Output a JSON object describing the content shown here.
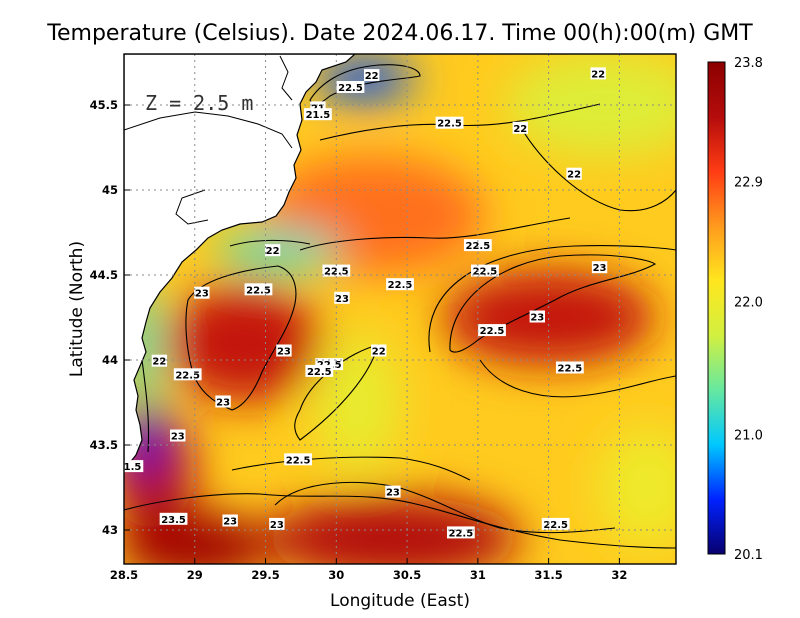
{
  "chart_data": {
    "type": "heatmap",
    "title": "Temperature (Celsius). Date 2024.06.17. Time 00(h):00(m)  GMT",
    "annotation": "Z = 2.5 m",
    "xlabel": "Longitude (East)",
    "ylabel": "Latitude (North)",
    "xlim": [
      28.5,
      32.4
    ],
    "ylim": [
      42.8,
      45.8
    ],
    "x_ticks": [
      "28.5",
      "29",
      "29.5",
      "30",
      "30.5",
      "31",
      "31.5",
      "32"
    ],
    "x_tick_values": [
      28.5,
      29,
      29.5,
      30,
      30.5,
      31,
      31.5,
      32
    ],
    "y_ticks": [
      "43",
      "43.5",
      "44",
      "44.5",
      "45",
      "45.5"
    ],
    "y_tick_values": [
      43,
      43.5,
      44,
      44.5,
      45,
      45.5
    ],
    "grid": true,
    "colorbar": {
      "min": 20.1,
      "max": 23.8,
      "labels": [
        "23.8",
        "22.9",
        "22.0",
        "21.0",
        "20.1"
      ],
      "label_values": [
        23.8,
        22.9,
        22.0,
        21.0,
        20.1
      ],
      "colors": [
        "#08006e",
        "#0022ff",
        "#00c8ff",
        "#66e8a0",
        "#d2f040",
        "#ffe61e",
        "#ff9a1e",
        "#ff3c14",
        "#b40c0c",
        "#8c0000"
      ]
    },
    "field": {
      "background_value": 22.3,
      "features": [
        {
          "lon": 29.35,
          "lat": 44.1,
          "value": 23.3,
          "rx": 0.55,
          "ry": 0.35
        },
        {
          "lon": 30.4,
          "lat": 42.95,
          "value": 23.4,
          "rx": 0.9,
          "ry": 0.25
        },
        {
          "lon": 29.0,
          "lat": 42.9,
          "value": 23.6,
          "rx": 0.55,
          "ry": 0.2
        },
        {
          "lon": 31.5,
          "lat": 44.25,
          "value": 23.3,
          "rx": 0.75,
          "ry": 0.28
        },
        {
          "lon": 28.7,
          "lat": 43.35,
          "value": 23.4,
          "rx": 0.3,
          "ry": 0.35
        },
        {
          "lon": 30.25,
          "lat": 44.85,
          "value": 22.75,
          "rx": 0.8,
          "ry": 0.35
        },
        {
          "lon": 30.15,
          "lat": 43.75,
          "value": 21.95,
          "rx": 0.3,
          "ry": 0.4
        },
        {
          "lon": 31.9,
          "lat": 45.5,
          "value": 21.85,
          "rx": 0.7,
          "ry": 0.3
        },
        {
          "lon": 32.2,
          "lat": 43.25,
          "value": 22.0,
          "rx": 0.35,
          "ry": 0.35
        },
        {
          "lon": 29.6,
          "lat": 44.65,
          "value": 21.2,
          "rx": 0.45,
          "ry": 0.12
        },
        {
          "lon": 30.2,
          "lat": 45.65,
          "value": 20.6,
          "rx": 0.35,
          "ry": 0.12
        },
        {
          "lon": 28.65,
          "lat": 43.55,
          "value": 20.4,
          "rx": 0.12,
          "ry": 0.22
        },
        {
          "lon": 28.62,
          "lat": 44.1,
          "value": 21.2,
          "rx": 0.12,
          "ry": 0.35
        }
      ]
    },
    "contour_labels": [
      {
        "text": "22",
        "lon": 30.25,
        "lat": 45.67
      },
      {
        "text": "22",
        "lon": 31.85,
        "lat": 45.68
      },
      {
        "text": "22.5",
        "lon": 30.1,
        "lat": 45.6
      },
      {
        "text": "21",
        "lon": 29.87,
        "lat": 45.48
      },
      {
        "text": "21.5",
        "lon": 29.87,
        "lat": 45.44
      },
      {
        "text": "22.5",
        "lon": 30.8,
        "lat": 45.39
      },
      {
        "text": "22",
        "lon": 31.3,
        "lat": 45.36
      },
      {
        "text": "22",
        "lon": 31.68,
        "lat": 45.09
      },
      {
        "text": "22",
        "lon": 29.55,
        "lat": 44.64
      },
      {
        "text": "22.5",
        "lon": 30.0,
        "lat": 44.52
      },
      {
        "text": "22.5",
        "lon": 31.0,
        "lat": 44.67
      },
      {
        "text": "22.5",
        "lon": 31.05,
        "lat": 44.52
      },
      {
        "text": "23",
        "lon": 31.86,
        "lat": 44.54
      },
      {
        "text": "22.5",
        "lon": 30.45,
        "lat": 44.44
      },
      {
        "text": "22.5",
        "lon": 29.45,
        "lat": 44.41
      },
      {
        "text": "23",
        "lon": 29.05,
        "lat": 44.39
      },
      {
        "text": "23",
        "lon": 30.04,
        "lat": 44.36
      },
      {
        "text": "23",
        "lon": 31.42,
        "lat": 44.25
      },
      {
        "text": "22.5",
        "lon": 31.1,
        "lat": 44.17
      },
      {
        "text": "23",
        "lon": 29.63,
        "lat": 44.05
      },
      {
        "text": "22",
        "lon": 30.3,
        "lat": 44.05
      },
      {
        "text": "22",
        "lon": 28.75,
        "lat": 43.99
      },
      {
        "text": "22.5",
        "lon": 29.95,
        "lat": 43.97
      },
      {
        "text": "22.5",
        "lon": 29.88,
        "lat": 43.93
      },
      {
        "text": "22.5",
        "lon": 31.65,
        "lat": 43.95
      },
      {
        "text": "22.5",
        "lon": 28.95,
        "lat": 43.91
      },
      {
        "text": "23",
        "lon": 29.2,
        "lat": 43.75
      },
      {
        "text": "23",
        "lon": 28.88,
        "lat": 43.55
      },
      {
        "text": "22.5",
        "lon": 29.73,
        "lat": 43.41
      },
      {
        "text": "1.5",
        "lon": 28.56,
        "lat": 43.37
      },
      {
        "text": "23",
        "lon": 30.4,
        "lat": 43.22
      },
      {
        "text": "23.5",
        "lon": 28.85,
        "lat": 43.06
      },
      {
        "text": "23",
        "lon": 29.25,
        "lat": 43.05
      },
      {
        "text": "23",
        "lon": 29.58,
        "lat": 43.03
      },
      {
        "text": "22.5",
        "lon": 31.55,
        "lat": 43.03
      },
      {
        "text": "22.5",
        "lon": 30.88,
        "lat": 42.98
      }
    ]
  }
}
